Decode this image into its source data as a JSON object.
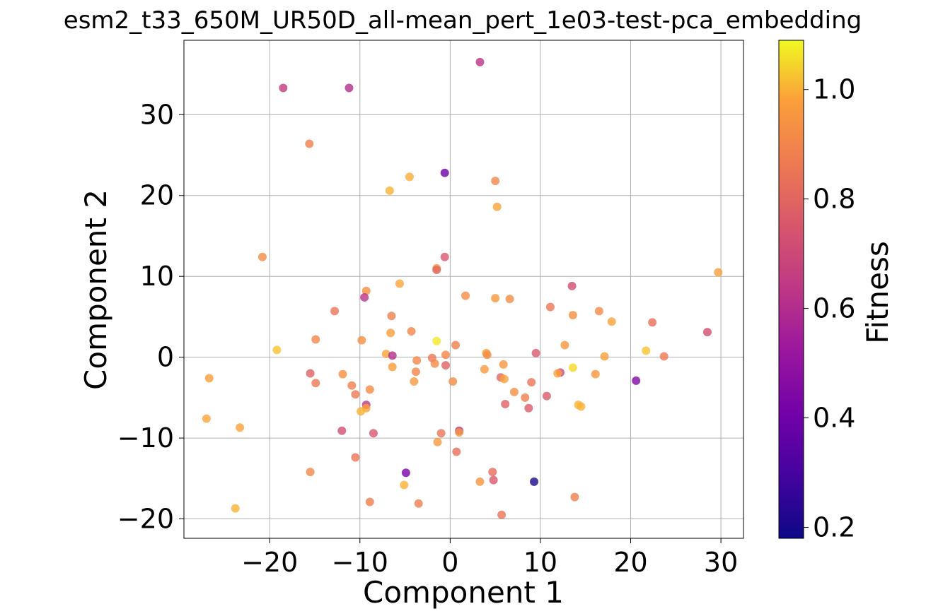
{
  "chart_data": {
    "type": "scatter",
    "title": "esm2_t33_650M_UR50D_all-mean_pert_1e03-test-pca_embedding",
    "xlabel": "Component 1",
    "ylabel": "Component 2",
    "xlim": [
      -29.5,
      32.5
    ],
    "ylim": [
      -22.4,
      39.2
    ],
    "xticks": [
      -20,
      -10,
      0,
      10,
      20,
      30
    ],
    "xtick_labels": [
      "−20",
      "−10",
      "0",
      "10",
      "20",
      "30"
    ],
    "yticks": [
      -20,
      -10,
      0,
      10,
      20,
      30
    ],
    "ytick_labels": [
      "−20",
      "−10",
      "0",
      "10",
      "20",
      "30"
    ],
    "grid": true,
    "colormap": "plasma",
    "colorbar": {
      "label": "Fitness",
      "range": [
        0.18,
        1.09
      ],
      "ticks": [
        0.2,
        0.4,
        0.6,
        0.8,
        1.0
      ],
      "tick_labels": [
        "0.2",
        "0.4",
        "0.6",
        "0.8",
        "1.0"
      ]
    },
    "points": [
      {
        "x": 3.3,
        "y": 36.5,
        "fitness": 0.62
      },
      {
        "x": -18.5,
        "y": 33.3,
        "fitness": 0.65
      },
      {
        "x": -11.2,
        "y": 33.3,
        "fitness": 0.6
      },
      {
        "x": -15.6,
        "y": 26.4,
        "fitness": 0.88
      },
      {
        "x": -0.6,
        "y": 22.8,
        "fitness": 0.4
      },
      {
        "x": -4.5,
        "y": 22.3,
        "fitness": 0.99
      },
      {
        "x": 5.0,
        "y": 21.8,
        "fitness": 0.9
      },
      {
        "x": -6.7,
        "y": 20.6,
        "fitness": 1.0
      },
      {
        "x": 5.2,
        "y": 18.6,
        "fitness": 0.98
      },
      {
        "x": -20.8,
        "y": 12.4,
        "fitness": 0.92
      },
      {
        "x": -0.6,
        "y": 12.4,
        "fitness": 0.75
      },
      {
        "x": -1.5,
        "y": 11.0,
        "fitness": 0.95
      },
      {
        "x": -1.5,
        "y": 10.8,
        "fitness": 0.8
      },
      {
        "x": 29.7,
        "y": 10.5,
        "fitness": 0.97
      },
      {
        "x": -5.6,
        "y": 9.1,
        "fitness": 0.98
      },
      {
        "x": 13.5,
        "y": 8.8,
        "fitness": 0.72
      },
      {
        "x": -9.3,
        "y": 8.2,
        "fitness": 0.93
      },
      {
        "x": 1.7,
        "y": 7.6,
        "fitness": 0.92
      },
      {
        "x": -9.5,
        "y": 7.4,
        "fitness": 0.62
      },
      {
        "x": 5.0,
        "y": 7.3,
        "fitness": 0.95
      },
      {
        "x": 6.6,
        "y": 7.2,
        "fitness": 0.92
      },
      {
        "x": 11.1,
        "y": 6.2,
        "fitness": 0.85
      },
      {
        "x": -12.8,
        "y": 5.7,
        "fitness": 0.85
      },
      {
        "x": 16.5,
        "y": 5.7,
        "fitness": 0.92
      },
      {
        "x": 13.6,
        "y": 5.2,
        "fitness": 0.93
      },
      {
        "x": -6.5,
        "y": 5.1,
        "fitness": 0.88
      },
      {
        "x": 17.9,
        "y": 4.4,
        "fitness": 0.98
      },
      {
        "x": 22.4,
        "y": 4.3,
        "fitness": 0.83
      },
      {
        "x": -4.3,
        "y": 3.2,
        "fitness": 0.9
      },
      {
        "x": 28.5,
        "y": 3.1,
        "fitness": 0.72
      },
      {
        "x": -6.6,
        "y": 3.0,
        "fitness": 0.97
      },
      {
        "x": -14.9,
        "y": 2.2,
        "fitness": 0.9
      },
      {
        "x": -9.8,
        "y": 2.1,
        "fitness": 0.93
      },
      {
        "x": -1.5,
        "y": 2.0,
        "fitness": 1.07
      },
      {
        "x": 0.6,
        "y": 1.5,
        "fitness": 0.88
      },
      {
        "x": 12.7,
        "y": 1.5,
        "fitness": 0.95
      },
      {
        "x": -19.2,
        "y": 0.9,
        "fitness": 1.02
      },
      {
        "x": 21.7,
        "y": 0.8,
        "fitness": 1.02
      },
      {
        "x": 9.5,
        "y": 0.5,
        "fitness": 0.75
      },
      {
        "x": 4.0,
        "y": 0.5,
        "fitness": 0.97
      },
      {
        "x": -7.1,
        "y": 0.4,
        "fitness": 0.98
      },
      {
        "x": -0.5,
        "y": 0.3,
        "fitness": 0.9
      },
      {
        "x": 4.1,
        "y": 0.3,
        "fitness": 0.92
      },
      {
        "x": -6.4,
        "y": 0.2,
        "fitness": 0.6
      },
      {
        "x": 17.1,
        "y": 0.1,
        "fitness": 0.97
      },
      {
        "x": 23.7,
        "y": 0.1,
        "fitness": 0.86
      },
      {
        "x": -2.0,
        "y": -0.1,
        "fitness": 0.86
      },
      {
        "x": -3.7,
        "y": -0.4,
        "fitness": 0.9
      },
      {
        "x": -1.7,
        "y": -0.8,
        "fitness": 0.92
      },
      {
        "x": 5.9,
        "y": -0.9,
        "fitness": 0.95
      },
      {
        "x": -0.5,
        "y": -1.0,
        "fitness": 0.78
      },
      {
        "x": -6.4,
        "y": -1.2,
        "fitness": 0.97
      },
      {
        "x": 13.6,
        "y": -1.3,
        "fitness": 1.05
      },
      {
        "x": 3.8,
        "y": -1.5,
        "fitness": 0.96
      },
      {
        "x": -3.8,
        "y": -1.8,
        "fitness": 0.9
      },
      {
        "x": 12.2,
        "y": -1.9,
        "fitness": 0.7
      },
      {
        "x": 11.9,
        "y": -2.0,
        "fitness": 0.98
      },
      {
        "x": -15.5,
        "y": -2.0,
        "fitness": 0.78
      },
      {
        "x": -11.9,
        "y": -2.1,
        "fitness": 0.93
      },
      {
        "x": 16.1,
        "y": -2.1,
        "fitness": 0.95
      },
      {
        "x": 5.6,
        "y": -2.5,
        "fitness": 0.8
      },
      {
        "x": -26.7,
        "y": -2.6,
        "fitness": 0.97
      },
      {
        "x": 6.0,
        "y": -2.7,
        "fitness": 0.98
      },
      {
        "x": 20.6,
        "y": -2.9,
        "fitness": 0.45
      },
      {
        "x": -4.0,
        "y": -3.0,
        "fitness": 0.96
      },
      {
        "x": 0.3,
        "y": -3.0,
        "fitness": 0.92
      },
      {
        "x": 9.0,
        "y": -3.1,
        "fitness": 0.85
      },
      {
        "x": -14.9,
        "y": -3.2,
        "fitness": 0.86
      },
      {
        "x": -10.9,
        "y": -3.5,
        "fitness": 0.88
      },
      {
        "x": -8.9,
        "y": -4.0,
        "fitness": 0.92
      },
      {
        "x": 7.1,
        "y": -4.3,
        "fitness": 0.93
      },
      {
        "x": -10.5,
        "y": -4.6,
        "fitness": 0.86
      },
      {
        "x": 10.7,
        "y": -4.8,
        "fitness": 0.76
      },
      {
        "x": 8.3,
        "y": -5.0,
        "fitness": 0.88
      },
      {
        "x": 6.1,
        "y": -5.8,
        "fitness": 0.78
      },
      {
        "x": -9.3,
        "y": -5.9,
        "fitness": 0.62
      },
      {
        "x": 14.2,
        "y": -5.9,
        "fitness": 1.0
      },
      {
        "x": 14.5,
        "y": -6.1,
        "fitness": 1.0
      },
      {
        "x": -9.3,
        "y": -6.3,
        "fitness": 0.98
      },
      {
        "x": 8.7,
        "y": -6.3,
        "fitness": 0.76
      },
      {
        "x": -9.9,
        "y": -6.7,
        "fitness": 1.0
      },
      {
        "x": -27.0,
        "y": -7.6,
        "fitness": 0.98
      },
      {
        "x": -23.3,
        "y": -8.7,
        "fitness": 0.98
      },
      {
        "x": -12.0,
        "y": -9.1,
        "fitness": 0.72
      },
      {
        "x": 1.0,
        "y": -9.1,
        "fitness": 0.62
      },
      {
        "x": -1.0,
        "y": -9.4,
        "fitness": 0.85
      },
      {
        "x": -8.5,
        "y": -9.4,
        "fitness": 0.75
      },
      {
        "x": 1.0,
        "y": -9.3,
        "fitness": 0.95
      },
      {
        "x": -1.4,
        "y": -10.5,
        "fitness": 0.96
      },
      {
        "x": 0.7,
        "y": -11.7,
        "fitness": 0.83
      },
      {
        "x": -10.5,
        "y": -12.4,
        "fitness": 0.85
      },
      {
        "x": -15.5,
        "y": -14.2,
        "fitness": 0.9
      },
      {
        "x": 4.7,
        "y": -14.2,
        "fitness": 0.82
      },
      {
        "x": -4.9,
        "y": -14.3,
        "fitness": 0.42
      },
      {
        "x": 4.8,
        "y": -15.2,
        "fitness": 0.75
      },
      {
        "x": 9.3,
        "y": -15.4,
        "fitness": 0.2
      },
      {
        "x": 3.3,
        "y": -15.4,
        "fitness": 0.95
      },
      {
        "x": -5.1,
        "y": -15.8,
        "fitness": 1.0
      },
      {
        "x": 13.8,
        "y": -17.3,
        "fitness": 0.88
      },
      {
        "x": -8.9,
        "y": -17.9,
        "fitness": 0.88
      },
      {
        "x": -3.5,
        "y": -18.1,
        "fitness": 0.88
      },
      {
        "x": -23.8,
        "y": -18.7,
        "fitness": 1.0
      },
      {
        "x": 5.7,
        "y": -19.5,
        "fitness": 0.85
      }
    ]
  }
}
